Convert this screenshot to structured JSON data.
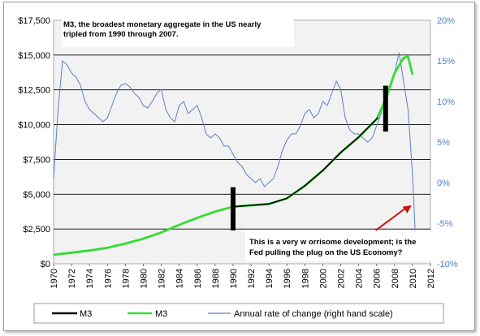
{
  "chart_data": {
    "type": "line",
    "x_ticks": [
      "1970",
      "1972",
      "1974",
      "1976",
      "1978",
      "1980",
      "1982",
      "1984",
      "1986",
      "1988",
      "1990",
      "1992",
      "1994",
      "1996",
      "1998",
      "2000",
      "2002",
      "2004",
      "2006",
      "2008",
      "2010",
      "2012"
    ],
    "xlim": [
      1970,
      2012
    ],
    "left_axis": {
      "ylim": [
        0,
        17500
      ],
      "ticks": [
        "$0",
        "$2,500",
        "$5,000",
        "$7,500",
        "$10,000",
        "$12,500",
        "$15,000",
        "$17,500"
      ]
    },
    "right_axis": {
      "ylim": [
        -10,
        20
      ],
      "ticks": [
        "-10%",
        "-5%",
        "0%",
        "5%",
        "10%",
        "15%",
        "20%"
      ],
      "color": "#4a7bd0"
    },
    "series": [
      {
        "name": "M3",
        "color": "#000000",
        "axis": "left",
        "x": [
          1990,
          1992,
          1994,
          1996,
          1998,
          2000,
          2002,
          2004,
          2006,
          2006.2
        ],
        "y": [
          4100,
          4200,
          4300,
          4700,
          5600,
          6700,
          8000,
          9100,
          10400,
          10500
        ]
      },
      {
        "name": "M3",
        "color": "#33dd33",
        "axis": "left",
        "x": [
          1970,
          1972,
          1974,
          1976,
          1978,
          1980,
          1982,
          1984,
          1986,
          1988,
          1990,
          1992,
          1994,
          1996,
          1998,
          2000,
          2002,
          2004,
          2006,
          2007,
          2008,
          2009,
          2009.5,
          2010
        ],
        "y": [
          650,
          800,
          950,
          1150,
          1450,
          1800,
          2250,
          2800,
          3300,
          3750,
          4100,
          4200,
          4300,
          4700,
          5600,
          6700,
          8000,
          9100,
          10400,
          11800,
          13700,
          14800,
          14900,
          13600
        ]
      },
      {
        "name": "Annual rate of change (right hand scale)",
        "color": "#5a7fc8",
        "axis": "right",
        "x": [
          1970,
          1970.5,
          1971,
          1971.5,
          1972,
          1972.5,
          1973,
          1973.5,
          1974,
          1974.5,
          1975,
          1975.5,
          1976,
          1976.5,
          1977,
          1977.5,
          1978,
          1978.5,
          1979,
          1979.5,
          1980,
          1980.5,
          1981,
          1981.5,
          1982,
          1982.5,
          1983,
          1983.5,
          1984,
          1984.5,
          1985,
          1985.5,
          1986,
          1986.5,
          1987,
          1987.5,
          1988,
          1988.5,
          1989,
          1989.5,
          1990,
          1990.5,
          1991,
          1991.5,
          1992,
          1992.5,
          1993,
          1993.5,
          1994,
          1994.5,
          1995,
          1995.5,
          1996,
          1996.5,
          1997,
          1997.5,
          1998,
          1998.5,
          1999,
          1999.5,
          2000,
          2000.5,
          2001,
          2001.5,
          2002,
          2002.5,
          2003,
          2003.5,
          2004,
          2004.5,
          2005,
          2005.5,
          2006,
          2006.5,
          2007,
          2007.5,
          2008,
          2008.5,
          2009,
          2009.5,
          2010,
          2010.3
        ],
        "y": [
          0.5,
          9,
          15,
          14.5,
          13.5,
          13,
          12,
          10,
          9,
          8.5,
          8,
          7.5,
          8,
          9.5,
          11,
          12,
          12.2,
          11.8,
          11,
          10.5,
          9.5,
          9.2,
          10,
          11,
          11.5,
          9,
          8,
          7.5,
          9.5,
          10,
          8.5,
          9,
          9.5,
          8,
          6,
          5.5,
          6,
          5.5,
          4.5,
          4.5,
          3.5,
          2.5,
          2,
          1,
          0.5,
          0,
          0.5,
          -0.5,
          0,
          0.5,
          2,
          4,
          5.2,
          6,
          6,
          7,
          8.5,
          9,
          8,
          8.5,
          10,
          9.5,
          11,
          12.5,
          11.5,
          8,
          6.5,
          6,
          6,
          5.5,
          5,
          5.5,
          7,
          8.5,
          11,
          12,
          13.5,
          16,
          12.5,
          9,
          1,
          -6
        ]
      }
    ],
    "annotations": [
      "M3, the broadest monetary aggregate in the US nearly tripled from 1990 through 2007.",
      "This is a very worrisome development; is the Fed pulling the plug on the US Economy?"
    ],
    "markers": [
      {
        "x": 1990,
        "y_from": 2400,
        "y_to": 5500
      },
      {
        "x": 2007,
        "y_from": 9500,
        "y_to": 12800
      }
    ],
    "arrow": {
      "from_x": 2005.9,
      "from_y": 2400,
      "to_x": 2009.9,
      "to_y": 4200,
      "color": "#cc1111"
    },
    "grid": "horizontal",
    "legend_position": "bottom",
    "annotation_lines": {
      "top": [
        "M3, the broadest monetary aggregate in the US nearly",
        "tripled from 1990 through 2007."
      ],
      "bottom": [
        "This is a very w orrisome development; is the",
        "Fed pulling the plug on the US Economy?"
      ]
    },
    "legend": [
      {
        "label": "M3",
        "color": "#000000"
      },
      {
        "label": "M3",
        "color": "#33dd33"
      },
      {
        "label": "Annual rate of change (right hand scale)",
        "color": "#5a7fc8"
      }
    ]
  }
}
